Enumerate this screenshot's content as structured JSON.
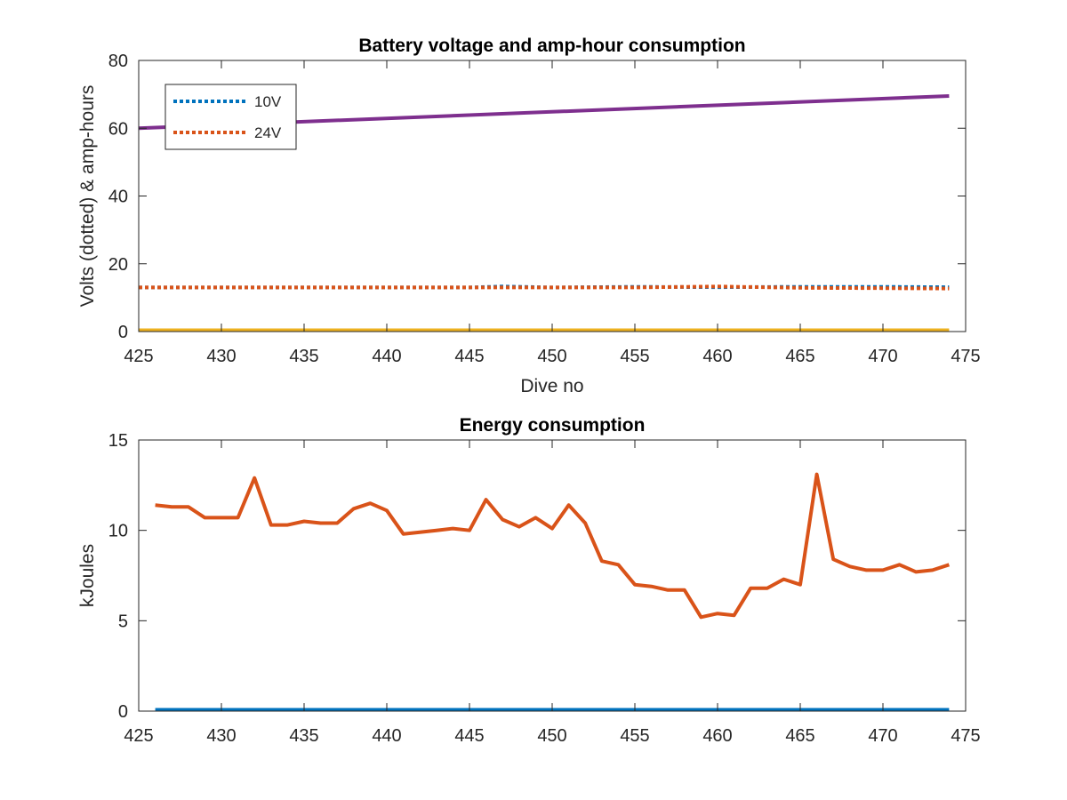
{
  "chart_data": [
    {
      "type": "line",
      "title": "Battery voltage and amp-hour consumption",
      "xlabel": "Dive no",
      "ylabel": "Volts (dotted) & amp-hours",
      "xlim": [
        425,
        475
      ],
      "ylim": [
        0,
        80
      ],
      "xticks": [
        425,
        430,
        435,
        440,
        445,
        450,
        455,
        460,
        465,
        470,
        475
      ],
      "yticks": [
        0,
        20,
        40,
        60,
        80
      ],
      "grid": false,
      "legend_position": "top-left",
      "series": [
        {
          "name": "10V",
          "style": "dotted",
          "color": "#0072BD",
          "x": [
            425,
            430,
            435,
            440,
            445,
            447,
            450,
            455,
            460,
            465,
            470,
            474
          ],
          "y": [
            13.0,
            13.0,
            13.0,
            13.0,
            13.0,
            13.3,
            13.0,
            13.2,
            13.1,
            13.2,
            13.2,
            13.1
          ]
        },
        {
          "name": "24V",
          "style": "dotted",
          "color": "#D95319",
          "x": [
            425,
            430,
            435,
            440,
            445,
            450,
            455,
            460,
            465,
            470,
            474
          ],
          "y": [
            13.0,
            13.0,
            13.0,
            13.0,
            13.0,
            13.0,
            13.0,
            13.3,
            12.9,
            12.8,
            12.7
          ]
        },
        {
          "style": "solid",
          "color": "#7E2F8E",
          "x": [
            425,
            474
          ],
          "y": [
            60.0,
            69.5
          ]
        },
        {
          "style": "solid",
          "color": "#EDB120",
          "x": [
            425,
            474
          ],
          "y": [
            0,
            0
          ]
        }
      ]
    },
    {
      "type": "line",
      "title": "Energy consumption",
      "xlabel": "",
      "ylabel": "kJoules",
      "xlim": [
        425,
        475
      ],
      "ylim": [
        0,
        15
      ],
      "xticks": [
        425,
        430,
        435,
        440,
        445,
        450,
        455,
        460,
        465,
        470,
        475
      ],
      "yticks": [
        0,
        5,
        10,
        15
      ],
      "grid": false,
      "series": [
        {
          "style": "solid",
          "color": "#D95319",
          "x": [
            426,
            427,
            428,
            429,
            430,
            431,
            432,
            433,
            434,
            435,
            436,
            437,
            438,
            439,
            440,
            441,
            442,
            443,
            444,
            445,
            446,
            447,
            448,
            449,
            450,
            451,
            452,
            453,
            454,
            455,
            456,
            457,
            458,
            459,
            460,
            461,
            462,
            463,
            464,
            465,
            466,
            467,
            468,
            469,
            470,
            471,
            472,
            473,
            474
          ],
          "y": [
            11.4,
            11.3,
            11.3,
            10.7,
            10.7,
            10.7,
            12.9,
            10.3,
            10.3,
            10.5,
            10.4,
            10.4,
            11.2,
            11.5,
            11.1,
            9.8,
            9.9,
            10.0,
            10.1,
            10.0,
            11.7,
            10.6,
            10.2,
            10.7,
            10.1,
            11.4,
            10.4,
            8.3,
            8.1,
            7.0,
            6.9,
            6.7,
            6.7,
            5.2,
            5.4,
            5.3,
            6.8,
            6.8,
            7.3,
            7.0,
            13.1,
            8.4,
            8.0,
            7.8,
            7.8,
            8.1,
            7.7,
            7.8,
            8.1
          ]
        },
        {
          "style": "solid",
          "color": "#0072BD",
          "x": [
            426,
            474
          ],
          "y": [
            0,
            0
          ]
        }
      ]
    }
  ]
}
